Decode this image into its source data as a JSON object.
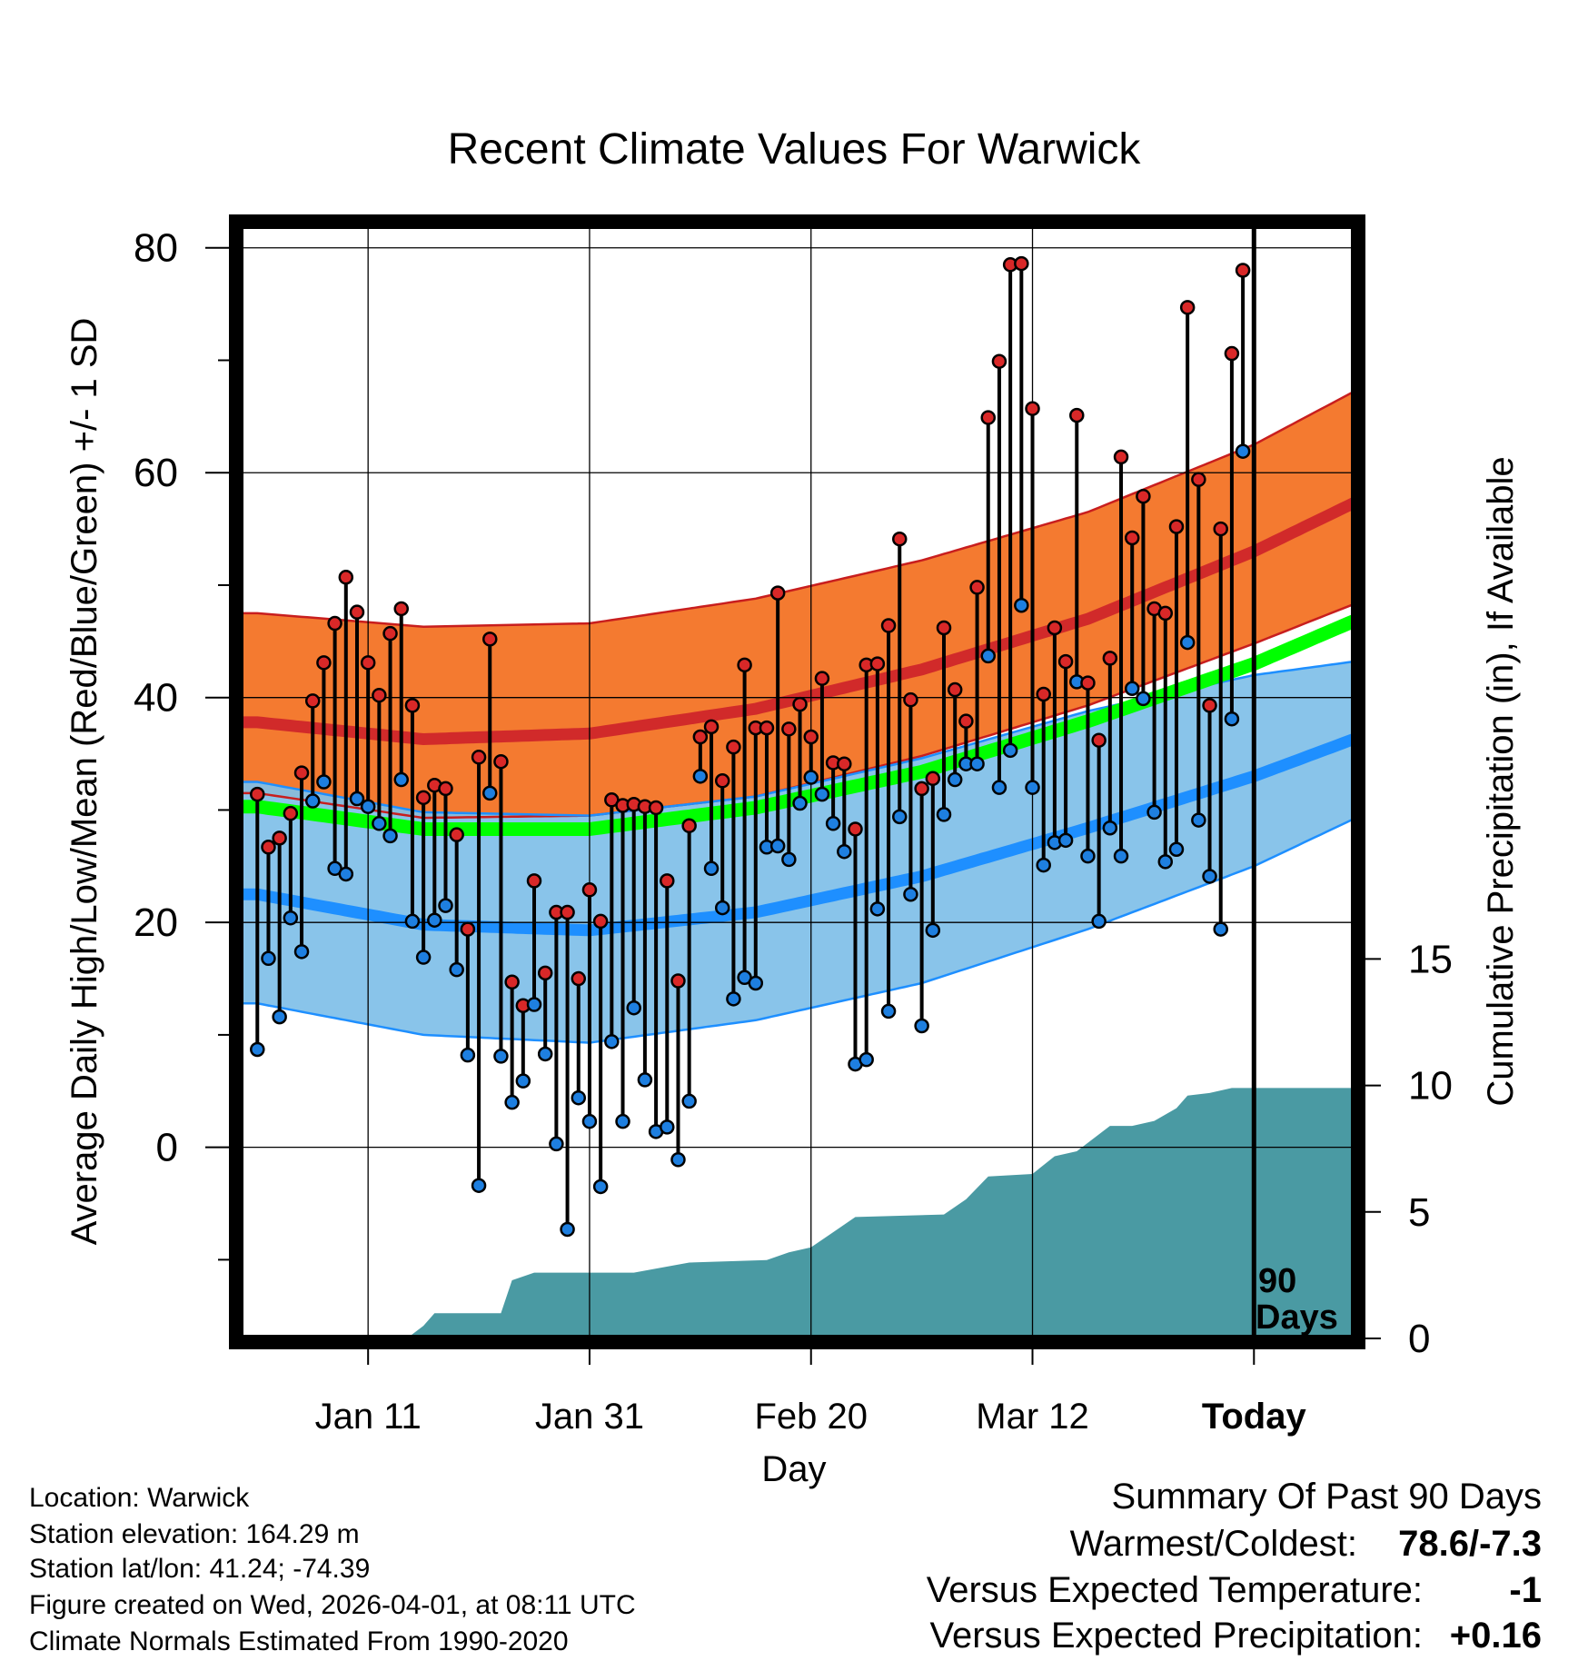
{
  "chart_data": {
    "type": "line",
    "title": "Recent Climate Values For Warwick",
    "xlabel": "Day",
    "ylabel": "Average Daily High/Low/Mean (Red/Blue/Green) +/- 1 SD",
    "y2label": "Cumulative Precipitation (in), If Available",
    "x_range_days": [
      -91.5,
      9
    ],
    "ylim": [
      -17,
      82
    ],
    "y_ticks": [
      0,
      20,
      40,
      60,
      80
    ],
    "y2lim": [
      0,
      44
    ],
    "y2_ticks": [
      0,
      5,
      10,
      15
    ],
    "x_ticks": [
      {
        "day": -80,
        "label": "Jan 11"
      },
      {
        "day": -60,
        "label": "Jan 31"
      },
      {
        "day": -40,
        "label": "Feb 20"
      },
      {
        "day": -20,
        "label": "Mar 12"
      },
      {
        "day": 0,
        "label": "Today"
      }
    ],
    "today_marker_label": [
      "90",
      "Days"
    ],
    "normals_days": [
      -90,
      -75,
      -60,
      -45,
      -30,
      -15,
      0,
      9
    ],
    "normal_high": [
      37.8,
      36.3,
      36.8,
      39.0,
      42.5,
      47.0,
      53.0,
      57.3
    ],
    "normal_high_upper": [
      47.5,
      46.3,
      46.6,
      48.8,
      52.2,
      56.5,
      62.5,
      67.2
    ],
    "normal_high_lower": [
      31.5,
      29.3,
      29.5,
      31.2,
      34.8,
      39.3,
      44.8,
      48.3
    ],
    "normal_low": [
      22.5,
      19.8,
      19.3,
      20.9,
      24.1,
      28.4,
      33.0,
      36.3
    ],
    "normal_low_upper": [
      32.5,
      29.8,
      29.5,
      31.2,
      34.6,
      38.8,
      42.0,
      43.2
    ],
    "normal_low_lower": [
      12.8,
      10.0,
      9.3,
      11.3,
      14.6,
      19.4,
      25.0,
      29.2
    ],
    "normal_mean": [
      30.3,
      28.3,
      28.3,
      30.2,
      33.4,
      37.9,
      43.0,
      46.8
    ],
    "daily_highs": [
      31.4,
      26.7,
      27.5,
      29.7,
      33.3,
      39.7,
      43.1,
      46.6,
      50.7,
      47.6,
      43.1,
      40.2,
      45.7,
      47.9,
      39.3,
      31.1,
      32.2,
      31.9,
      27.8,
      19.4,
      34.7,
      45.2,
      34.3,
      14.7,
      12.6,
      23.7,
      15.5,
      20.9,
      20.9,
      15.0,
      22.9,
      20.1,
      30.9,
      30.4,
      30.5,
      30.3,
      30.2,
      23.7,
      14.8,
      28.6,
      36.5,
      37.4,
      32.6,
      35.6,
      42.9,
      37.3,
      37.3,
      49.3,
      37.2,
      39.4,
      36.5,
      41.7,
      34.2,
      34.1,
      28.3,
      42.9,
      43.0,
      46.4,
      54.1,
      39.8,
      31.9,
      32.8,
      46.2,
      40.7,
      37.9,
      49.8,
      64.9,
      69.9,
      78.5,
      78.6,
      65.7,
      40.3,
      46.2,
      43.2,
      65.1,
      41.3,
      36.2,
      43.5,
      61.4,
      54.2,
      57.9,
      47.9,
      47.5,
      55.2,
      74.7,
      59.4,
      39.3,
      55.0,
      70.6,
      78.0
    ],
    "daily_lows": [
      8.7,
      16.8,
      11.6,
      20.4,
      17.4,
      30.8,
      32.5,
      24.8,
      24.3,
      31.0,
      30.3,
      28.8,
      27.7,
      32.7,
      20.1,
      16.9,
      20.2,
      21.5,
      15.8,
      8.2,
      -3.4,
      31.5,
      8.1,
      4.0,
      5.9,
      12.7,
      8.3,
      0.3,
      -7.3,
      4.4,
      2.3,
      -3.5,
      9.4,
      2.3,
      12.4,
      6.0,
      1.4,
      1.8,
      -1.1,
      4.1,
      33.0,
      24.8,
      21.3,
      13.2,
      15.1,
      14.6,
      26.7,
      26.8,
      25.6,
      30.6,
      32.9,
      31.4,
      28.8,
      26.3,
      7.4,
      7.8,
      21.2,
      12.1,
      29.4,
      22.5,
      10.8,
      19.3,
      29.6,
      32.7,
      34.1,
      34.1,
      43.7,
      32.0,
      35.3,
      48.2,
      32.0,
      25.1,
      27.1,
      27.3,
      41.4,
      25.9,
      20.1,
      28.4,
      25.9,
      40.8,
      39.9,
      29.8,
      25.4,
      26.5,
      44.9,
      29.1,
      24.1,
      19.4,
      38.1,
      61.9
    ],
    "cumulative_precip": [
      [
        -91.5,
        0
      ],
      [
        -76.5,
        0
      ],
      [
        -75,
        0.5
      ],
      [
        -74,
        1.0
      ],
      [
        -68,
        1.0
      ],
      [
        -67,
        2.3
      ],
      [
        -65,
        2.6
      ],
      [
        -56,
        2.6
      ],
      [
        -51,
        3.0
      ],
      [
        -44,
        3.1
      ],
      [
        -42,
        3.4
      ],
      [
        -40,
        3.6
      ],
      [
        -38,
        4.2
      ],
      [
        -36,
        4.8
      ],
      [
        -28,
        4.9
      ],
      [
        -26,
        5.5
      ],
      [
        -24,
        6.4
      ],
      [
        -20,
        6.5
      ],
      [
        -18,
        7.2
      ],
      [
        -16,
        7.4
      ],
      [
        -13,
        8.4
      ],
      [
        -11,
        8.4
      ],
      [
        -9,
        8.6
      ],
      [
        -7,
        9.1
      ],
      [
        -6,
        9.6
      ],
      [
        -4,
        9.7
      ],
      [
        -2,
        9.9
      ],
      [
        0,
        9.9
      ],
      [
        9,
        9.9
      ]
    ]
  },
  "footer": {
    "location": "Location: Warwick",
    "elevation": "Station elevation: 164.29 m",
    "latlon": "Station lat/lon: 41.24; -74.39",
    "created": "Figure created on Wed, 2026-04-01, at 08:11 UTC",
    "normals": "Climate Normals Estimated From 1990-2020"
  },
  "summary": {
    "heading": "Summary Of Past 90 Days",
    "warm_cold_label": "Warmest/Coldest:",
    "warm_cold_value": "78.6/-7.3",
    "temp_label": "Versus Expected Temperature:",
    "temp_value": "-1",
    "precip_label": "Versus Expected Precipitation:",
    "precip_value": "+0.16",
    "colors": {
      "temp": "#1e8fff",
      "precip": "#00d200"
    }
  },
  "colors": {
    "high_band": "#f47a30",
    "high_line": "#d12a2a",
    "high_edge": "#c81e1e",
    "low_band": "#80c0e8",
    "low_line": "#1e8fff",
    "mean_line": "#00ff00",
    "precip": "#4a9aa3",
    "high_dot": "#d92828",
    "low_dot": "#1e7fe0"
  }
}
